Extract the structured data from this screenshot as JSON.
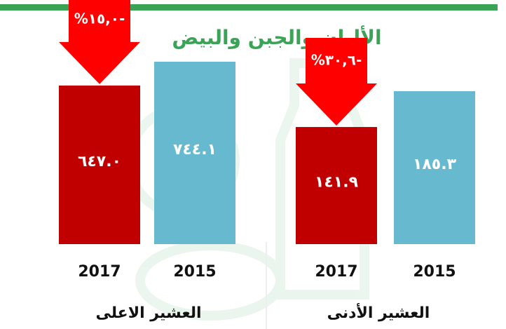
{
  "title": "الألبان والجبن والبيض",
  "chart_data": [
    {
      "type": "bar",
      "xlabel": "العشير الأدنى",
      "categories": [
        "2015",
        "2017"
      ],
      "values": [
        185.3,
        141.9
      ],
      "value_labels": [
        "١٨٥.٣",
        "١٤١.٩"
      ],
      "colors": [
        "#67b9cf",
        "#c00000"
      ],
      "annotation": "%٣٠,٦-"
    },
    {
      "type": "bar",
      "xlabel": "العشير الاعلى",
      "categories": [
        "2015",
        "2017"
      ],
      "values": [
        744.1,
        647.0
      ],
      "value_labels": [
        "٧٤٤.١",
        "٦٤٧.٠"
      ],
      "colors": [
        "#67b9cf",
        "#c00000"
      ],
      "annotation": "%١٥,٠-"
    }
  ]
}
